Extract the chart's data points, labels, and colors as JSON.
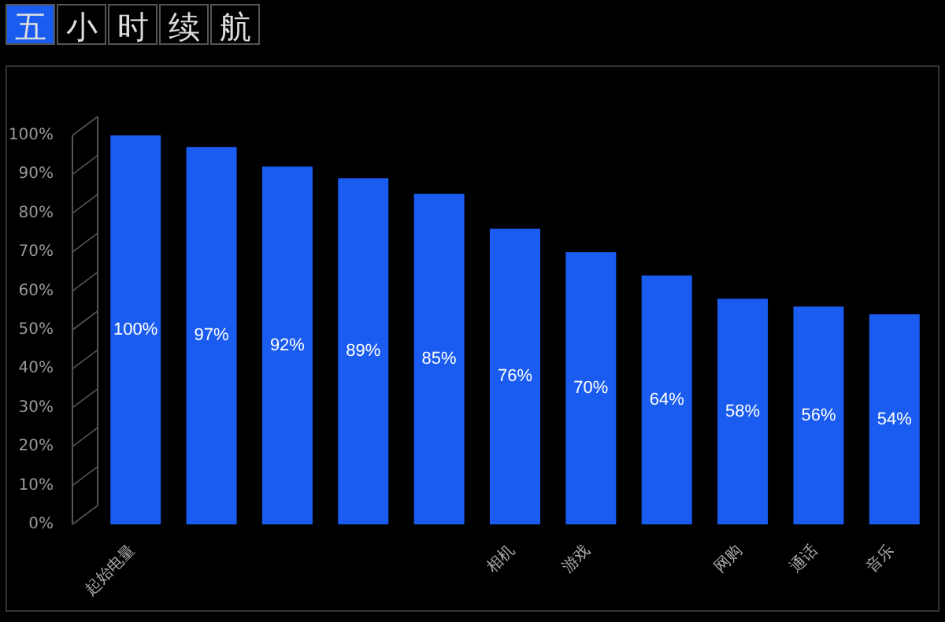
{
  "chart_data": {
    "type": "bar",
    "title": "五小时续航",
    "categories": [
      "起始电量",
      null,
      null,
      null,
      null,
      "相机",
      "游戏",
      null,
      "网购",
      "通话",
      "音乐"
    ],
    "values": [
      100,
      97,
      92,
      89,
      85,
      76,
      70,
      64,
      58,
      56,
      54
    ],
    "value_labels": [
      "100%",
      "97%",
      "92%",
      "89%",
      "85%",
      "76%",
      "70%",
      "64%",
      "58%",
      "56%",
      "54%"
    ],
    "color": "#1a5cf0",
    "ylim": [
      0,
      100
    ],
    "yticks": [
      {
        "value": 0,
        "label": "0%"
      },
      {
        "value": 10,
        "label": "10%"
      },
      {
        "value": 20,
        "label": "20%"
      },
      {
        "value": 30,
        "label": "30%"
      },
      {
        "value": 40,
        "label": "40%"
      },
      {
        "value": 50,
        "label": "50%"
      },
      {
        "value": 60,
        "label": "60%"
      },
      {
        "value": 70,
        "label": "70%"
      },
      {
        "value": 80,
        "label": "80%"
      },
      {
        "value": 90,
        "label": "90%"
      },
      {
        "value": 100,
        "label": "100%"
      }
    ],
    "grid": false
  }
}
